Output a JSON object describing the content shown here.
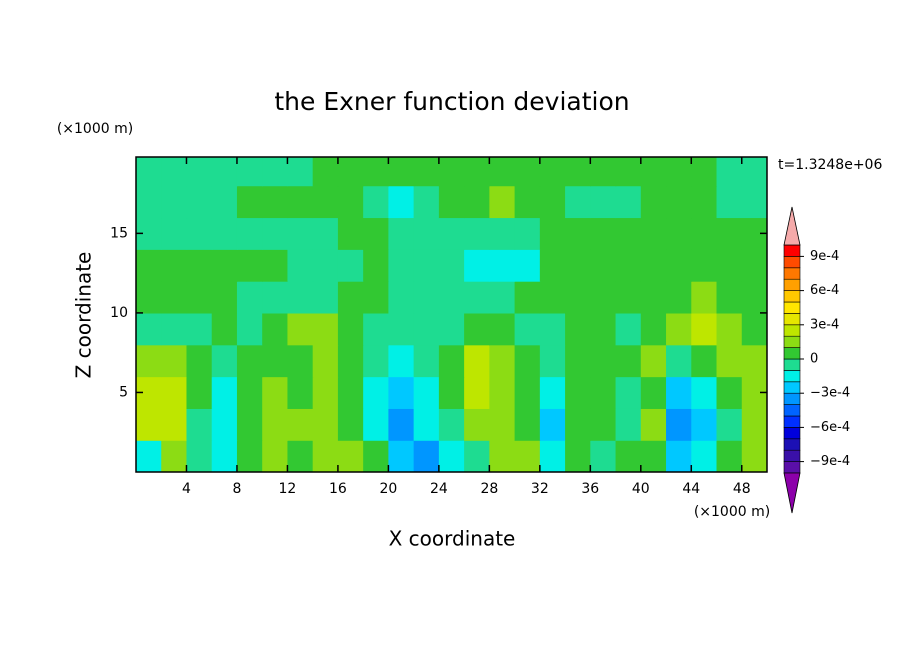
{
  "chart_data": {
    "type": "contour",
    "title": "the Exner function deviation",
    "xlabel": "X coordinate",
    "ylabel": "Z coordinate",
    "xunit": "(×1000 m)",
    "yunit": "(×1000 m)",
    "annotation": "t=1.3248e+06",
    "xlim": [
      0,
      50
    ],
    "ylim": [
      0,
      19.8
    ],
    "xticks": [
      4,
      8,
      12,
      16,
      20,
      24,
      28,
      32,
      36,
      40,
      44,
      48
    ],
    "yticks": [
      5,
      10,
      15
    ],
    "x": [
      1,
      3,
      5,
      7,
      9,
      11,
      13,
      15,
      17,
      19,
      21,
      23,
      25,
      27,
      29,
      31,
      33,
      35,
      37,
      39,
      41,
      43,
      45,
      47,
      49
    ],
    "y": [
      1,
      3,
      5,
      7,
      9,
      11,
      13,
      15,
      17,
      19
    ],
    "z": [
      [
        -0.00015,
        0.00015,
        -5e-05,
        -0.00015,
        5e-05,
        0.00015,
        5e-05,
        0.00015,
        0.00015,
        5e-05,
        -0.00025,
        -0.00035,
        -0.00015,
        -5e-05,
        0.00015,
        0.00015,
        -0.00015,
        5e-05,
        -5e-05,
        5e-05,
        5e-05,
        -0.00025,
        -0.00015,
        5e-05,
        0.00015
      ],
      [
        0.00025,
        0.00025,
        -5e-05,
        -0.00015,
        5e-05,
        0.00015,
        0.00015,
        0.00015,
        5e-05,
        -0.00015,
        -0.00035,
        -0.00015,
        -5e-05,
        0.00015,
        0.00015,
        5e-05,
        -0.00025,
        5e-05,
        5e-05,
        -5e-05,
        0.00015,
        -0.00035,
        -0.00025,
        -5e-05,
        0.00015
      ],
      [
        0.00025,
        0.00025,
        5e-05,
        -0.00015,
        5e-05,
        0.00015,
        5e-05,
        0.00015,
        5e-05,
        -0.00015,
        -0.00025,
        -0.00015,
        5e-05,
        0.00025,
        0.00015,
        5e-05,
        -0.00015,
        5e-05,
        5e-05,
        -5e-05,
        5e-05,
        -0.00025,
        -0.00015,
        5e-05,
        0.00015
      ],
      [
        0.00015,
        0.00015,
        5e-05,
        -5e-05,
        5e-05,
        5e-05,
        5e-05,
        0.00015,
        5e-05,
        -5e-05,
        -0.00015,
        -5e-05,
        5e-05,
        0.00025,
        0.00015,
        5e-05,
        -5e-05,
        5e-05,
        5e-05,
        5e-05,
        0.00015,
        -5e-05,
        5e-05,
        0.00015,
        0.00015
      ],
      [
        -5e-05,
        -5e-05,
        -5e-05,
        5e-05,
        -5e-05,
        5e-05,
        0.00015,
        0.00015,
        5e-05,
        -5e-05,
        -5e-05,
        -5e-05,
        -5e-05,
        5e-05,
        5e-05,
        -5e-05,
        -5e-05,
        5e-05,
        5e-05,
        -5e-05,
        5e-05,
        0.00015,
        0.00025,
        0.00015,
        5e-05
      ],
      [
        5e-05,
        5e-05,
        5e-05,
        5e-05,
        -5e-05,
        -5e-05,
        -5e-05,
        -5e-05,
        5e-05,
        5e-05,
        -5e-05,
        -5e-05,
        -5e-05,
        -5e-05,
        -5e-05,
        5e-05,
        5e-05,
        5e-05,
        5e-05,
        5e-05,
        5e-05,
        5e-05,
        0.00015,
        5e-05,
        5e-05
      ],
      [
        5e-05,
        5e-05,
        5e-05,
        5e-05,
        5e-05,
        5e-05,
        -5e-05,
        -5e-05,
        -5e-05,
        5e-05,
        -5e-05,
        -5e-05,
        -5e-05,
        -0.00015,
        -0.00015,
        -0.00015,
        5e-05,
        5e-05,
        5e-05,
        5e-05,
        5e-05,
        5e-05,
        5e-05,
        5e-05,
        5e-05
      ],
      [
        -5e-05,
        -5e-05,
        -5e-05,
        -5e-05,
        -5e-05,
        -5e-05,
        -5e-05,
        -5e-05,
        5e-05,
        5e-05,
        -5e-05,
        -5e-05,
        -5e-05,
        -5e-05,
        -5e-05,
        -5e-05,
        5e-05,
        5e-05,
        5e-05,
        5e-05,
        5e-05,
        5e-05,
        5e-05,
        5e-05,
        5e-05
      ],
      [
        -5e-05,
        -5e-05,
        -5e-05,
        -5e-05,
        5e-05,
        5e-05,
        5e-05,
        5e-05,
        5e-05,
        -5e-05,
        -0.00015,
        -5e-05,
        5e-05,
        5e-05,
        0.00015,
        5e-05,
        5e-05,
        -5e-05,
        -5e-05,
        -5e-05,
        5e-05,
        5e-05,
        5e-05,
        -5e-05,
        -5e-05
      ],
      [
        -5e-05,
        -5e-05,
        -5e-05,
        -5e-05,
        -5e-05,
        -5e-05,
        -5e-05,
        5e-05,
        5e-05,
        5e-05,
        5e-05,
        5e-05,
        5e-05,
        5e-05,
        5e-05,
        5e-05,
        5e-05,
        5e-05,
        5e-05,
        5e-05,
        5e-05,
        5e-05,
        5e-05,
        -5e-05,
        -5e-05
      ]
    ],
    "levels": [
      -0.001,
      -0.0009,
      -0.0008,
      -0.0007,
      -0.0006,
      -0.0005,
      -0.0004,
      -0.0003,
      -0.0002,
      -0.0001,
      0,
      0.0001,
      0.0002,
      0.0003,
      0.0004,
      0.0005,
      0.0006,
      0.0007,
      0.0008,
      0.0009,
      0.001
    ],
    "colors": [
      "#5a0fa8",
      "#3a10a8",
      "#1c10b4",
      "#0000dc",
      "#0030ff",
      "#0064ff",
      "#0096ff",
      "#00c8ff",
      "#00f0e6",
      "#1edc91",
      "#32c832",
      "#8cdc14",
      "#bee600",
      "#e6e600",
      "#ffe600",
      "#ffc800",
      "#ffa000",
      "#ff7800",
      "#ff4b00",
      "#ff0000"
    ],
    "extend_colors": [
      "#8c00aa",
      "#f5aaaa"
    ],
    "cbticks": [
      {
        "value": 0.0009,
        "label": "9e-4"
      },
      {
        "value": 0.0006,
        "label": "6e-4"
      },
      {
        "value": 0.0003,
        "label": "3e-4"
      },
      0,
      {
        "value": -0.0003,
        "label": "−3e-4"
      },
      {
        "value": -0.0006,
        "label": "−6e-4"
      },
      {
        "value": -0.0009,
        "label": "−9e-4"
      }
    ]
  }
}
